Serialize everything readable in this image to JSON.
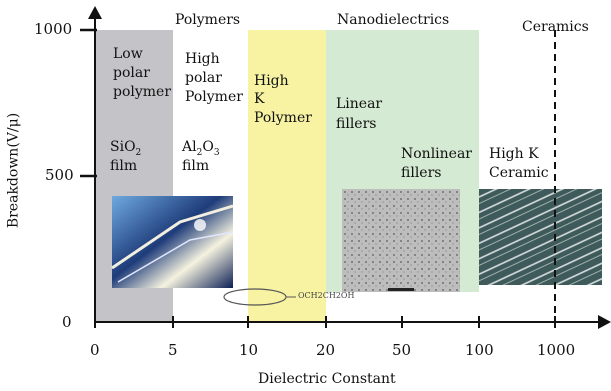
{
  "colors": {
    "band_low_polar": "#c4c4c8",
    "band_high_k_polymer": "#f7f3a3",
    "band_nanodielectrics": "#d5ead2",
    "axis": "#111111"
  },
  "axes": {
    "y_label": "Breakdown(V/μ)",
    "x_label": "Dielectric Constant",
    "y_ticks": [
      "1000",
      "500",
      "0"
    ],
    "x_ticks": [
      "0",
      "5",
      "10",
      "20",
      "50",
      "100",
      "1000"
    ]
  },
  "headers": {
    "polymers": "Polymers",
    "nanodielectrics": "Nanodielectrics",
    "ceramics": "Ceramics"
  },
  "regions": {
    "low_polar": {
      "l1": "Low",
      "l2": "polar",
      "l3": "polymer"
    },
    "high_polar": {
      "l1": "High",
      "l2": "polar",
      "l3": "Polymer"
    },
    "high_k_polymer": {
      "l1": "High",
      "l2": "K",
      "l3": "Polymer"
    },
    "linear_fillers": {
      "l1": "Linear",
      "l2": "fillers"
    },
    "nonlinear_fillers": {
      "l1": "Nonlinear",
      "l2": "fillers"
    },
    "high_k_ceramic": {
      "l1": "High K",
      "l2": "Ceramic"
    }
  },
  "films": {
    "sio2": {
      "base": "SiO",
      "sub": "2",
      "word": "film"
    },
    "al2o3": {
      "al": "Al",
      "sub1": "2",
      "o": "O",
      "sub2": "3",
      "word": "film"
    }
  },
  "images": {
    "molecule_formula": "OCH2CH2OH"
  }
}
